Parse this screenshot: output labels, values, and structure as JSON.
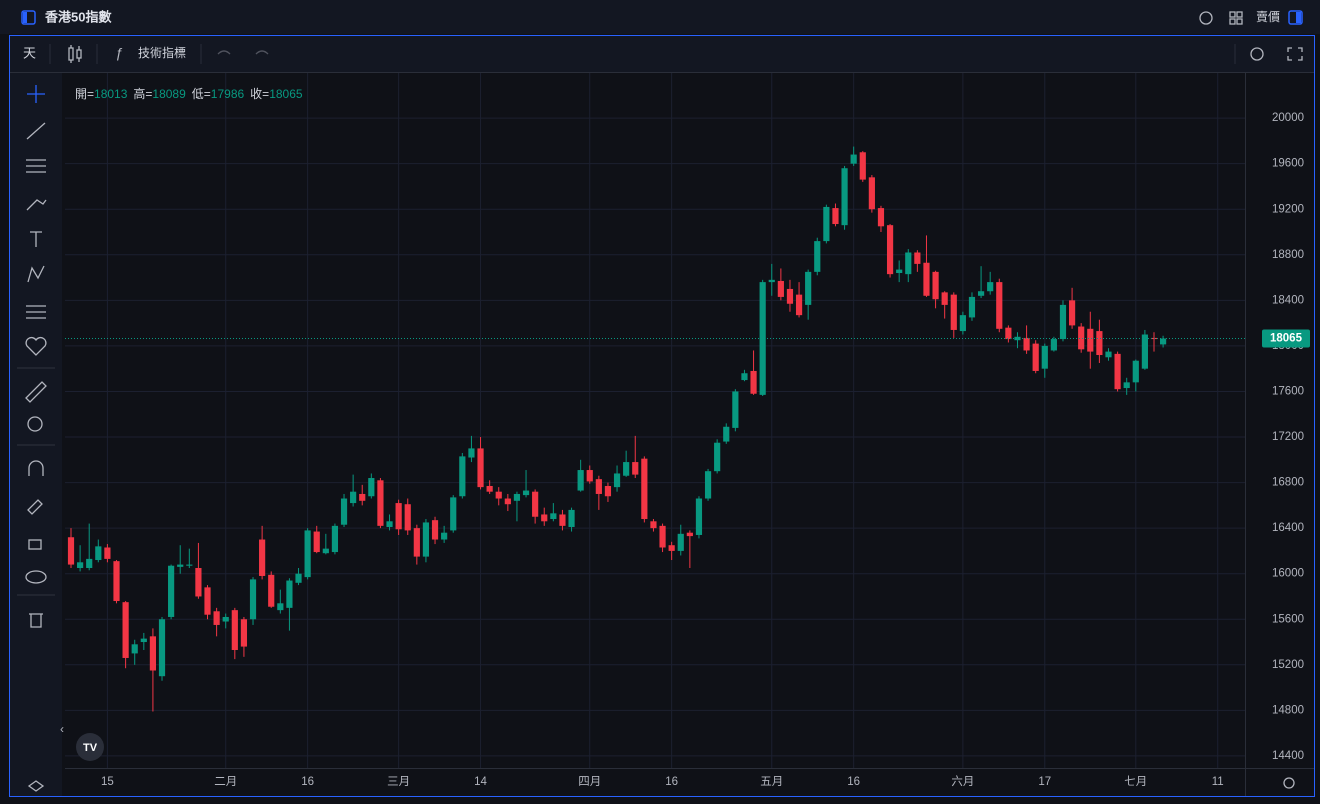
{
  "header": {
    "title": "香港50指數",
    "right_label": "賣價"
  },
  "toolbar": {
    "interval": "天",
    "indicators": "技術指標"
  },
  "chart_data": {
    "type": "candlestick",
    "colors": {
      "up": "#089981",
      "down": "#f23645"
    },
    "ohlc_labels": [
      "開=",
      "高=",
      "低=",
      "收="
    ],
    "open": [
      16320,
      16050,
      16050,
      16120,
      16230,
      16110,
      15750,
      15300,
      15400,
      15450,
      15100,
      15620,
      16060,
      16070,
      16050,
      15880,
      15670,
      15580,
      15680,
      15600,
      15600,
      16300,
      15990,
      15680,
      15700,
      15920,
      15970,
      16370,
      16180,
      16190,
      16430,
      16620,
      16700,
      16680,
      16820,
      16410,
      16620,
      16610,
      16400,
      16150,
      16470,
      16300,
      16380,
      16680,
      17020,
      17100,
      16770,
      16720,
      16660,
      16640,
      16690,
      16720,
      16520,
      16480,
      16520,
      16410,
      16730,
      16910,
      16830,
      16770,
      16760,
      16860,
      16980,
      17010,
      16460,
      16420,
      16250,
      16200,
      16360,
      16340,
      16660,
      16900,
      17160,
      17280,
      17700,
      17780,
      17570,
      18560,
      18570,
      18500,
      18450,
      18360,
      18650,
      18920,
      19210,
      19060,
      19600,
      19700,
      19480,
      19210,
      19060,
      18640,
      18630,
      18820,
      18730,
      18650,
      18470,
      18450,
      18130,
      18250,
      18440,
      18480,
      18560,
      18160,
      18050,
      18070,
      18020,
      17800,
      17960,
      18060,
      18400,
      18170,
      18150,
      18130,
      17900,
      17930,
      17630,
      17680,
      17800,
      18070,
      18013
    ],
    "high": [
      16400,
      16250,
      16440,
      16300,
      16260,
      16120,
      15760,
      15420,
      15480,
      15520,
      15620,
      16080,
      16250,
      16220,
      16270,
      15900,
      15700,
      15650,
      15700,
      15620,
      15970,
      16420,
      16020,
      15860,
      15960,
      16050,
      16400,
      16420,
      16350,
      16440,
      16700,
      16870,
      16780,
      16880,
      16840,
      16520,
      16650,
      16660,
      16430,
      16480,
      16500,
      16420,
      16690,
      17060,
      17210,
      17200,
      16820,
      16760,
      16700,
      16720,
      16910,
      16740,
      16580,
      16620,
      16560,
      16580,
      17000,
      16950,
      16860,
      16800,
      16950,
      17080,
      17210,
      17030,
      16480,
      16440,
      16280,
      16430,
      16380,
      16680,
      16920,
      17180,
      17320,
      17620,
      17790,
      17960,
      18580,
      18720,
      18680,
      18580,
      18560,
      18670,
      18950,
      19240,
      19250,
      19580,
      19750,
      19710,
      19500,
      19230,
      19070,
      18750,
      18850,
      18840,
      18970,
      18660,
      18480,
      18470,
      18300,
      18470,
      18700,
      18650,
      18590,
      18180,
      18120,
      18180,
      18050,
      18020,
      18080,
      18400,
      18510,
      18200,
      18300,
      18230,
      17980,
      17950,
      17720,
      17880,
      18140,
      18120,
      18089
    ],
    "low": [
      16050,
      16020,
      16030,
      16100,
      16100,
      15740,
      15170,
      15200,
      15330,
      14790,
      15060,
      15600,
      16000,
      16050,
      15780,
      15600,
      15450,
      15520,
      15250,
      15270,
      15550,
      15950,
      15700,
      15650,
      15500,
      15900,
      15950,
      16180,
      16170,
      16170,
      16410,
      16590,
      16600,
      16660,
      16400,
      16380,
      16340,
      16340,
      16080,
      16100,
      16260,
      16270,
      16360,
      16660,
      16980,
      16740,
      16700,
      16600,
      16550,
      16460,
      16670,
      16440,
      16420,
      16460,
      16380,
      16370,
      16720,
      16790,
      16560,
      16630,
      16720,
      16850,
      16840,
      16450,
      16370,
      16190,
      16120,
      16160,
      16050,
      16310,
      16640,
      16880,
      17140,
      17250,
      17690,
      17570,
      17560,
      18440,
      18400,
      18300,
      18250,
      18230,
      18620,
      18900,
      19050,
      19020,
      19580,
      19440,
      19170,
      19000,
      18600,
      18560,
      18560,
      18650,
      18430,
      18330,
      18240,
      18070,
      18100,
      18220,
      18420,
      18450,
      18120,
      18030,
      17980,
      17930,
      17760,
      17720,
      17950,
      18040,
      18150,
      17940,
      17800,
      17850,
      17870,
      17600,
      17570,
      17600,
      17790,
      17950,
      17986
    ],
    "close": [
      16080,
      16100,
      16130,
      16240,
      16130,
      15760,
      15260,
      15380,
      15430,
      15150,
      15600,
      16070,
      16080,
      16080,
      15800,
      15640,
      15550,
      15620,
      15330,
      15360,
      15950,
      15980,
      15710,
      15740,
      15940,
      16000,
      16380,
      16190,
      16220,
      16420,
      16660,
      16720,
      16640,
      16840,
      16420,
      16460,
      16390,
      16380,
      16150,
      16450,
      16300,
      16360,
      16670,
      17030,
      17100,
      16760,
      16720,
      16660,
      16610,
      16700,
      16730,
      16500,
      16460,
      16530,
      16420,
      16560,
      16910,
      16810,
      16700,
      16680,
      16880,
      16980,
      16870,
      16480,
      16400,
      16230,
      16200,
      16350,
      16330,
      16660,
      16900,
      17150,
      17290,
      17600,
      17760,
      17580,
      18560,
      18580,
      18430,
      18370,
      18270,
      18650,
      18920,
      19220,
      19070,
      19560,
      19680,
      19460,
      19200,
      19050,
      18630,
      18670,
      18820,
      18720,
      18440,
      18410,
      18360,
      18140,
      18270,
      18430,
      18480,
      18560,
      18150,
      18060,
      18080,
      17960,
      17780,
      18000,
      18060,
      18360,
      18180,
      17970,
      17950,
      17920,
      17950,
      17620,
      17680,
      17870,
      18100,
      18060,
      18065
    ],
    "xlim": [
      -0.66,
      129
    ],
    "xticks": [
      {
        "value": 4,
        "label": "15"
      },
      {
        "value": 17,
        "label": "二月"
      },
      {
        "value": 26,
        "label": "16"
      },
      {
        "value": 36,
        "label": "三月"
      },
      {
        "value": 45,
        "label": "14"
      },
      {
        "value": 57,
        "label": "四月"
      },
      {
        "value": 66,
        "label": "16"
      },
      {
        "value": 77,
        "label": "五月"
      },
      {
        "value": 86,
        "label": "16"
      },
      {
        "value": 98,
        "label": "六月"
      },
      {
        "value": 107,
        "label": "17"
      },
      {
        "value": 117,
        "label": "七月"
      },
      {
        "value": 126,
        "label": "11"
      }
    ],
    "ylim": [
      14294,
      20396
    ],
    "yticks": [
      14400,
      14800,
      15200,
      15600,
      16000,
      16400,
      16800,
      17200,
      17600,
      18000,
      18400,
      18800,
      19200,
      19600,
      20000
    ],
    "grid": true
  }
}
